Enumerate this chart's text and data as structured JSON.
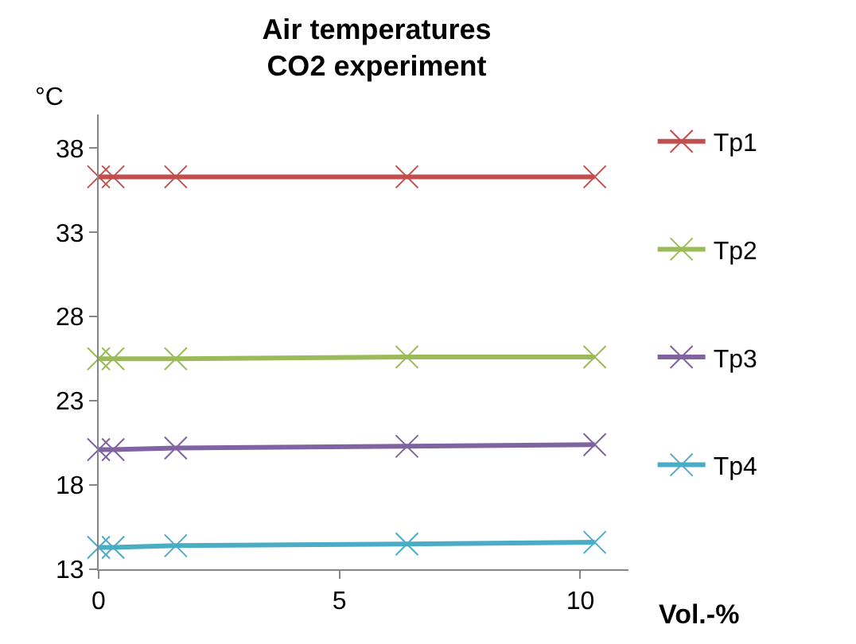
{
  "chart_data": {
    "type": "line",
    "title": "Air temperatures\nCO2 experiment",
    "xlabel": "Vol.-%",
    "ylabel": "°C",
    "x": [
      0,
      0.3,
      1.6,
      6.4,
      10.3
    ],
    "series": [
      {
        "name": "Tp1",
        "color": "#c0504d",
        "values": [
          36.3,
          36.3,
          36.3,
          36.3,
          36.3
        ]
      },
      {
        "name": "Tp2",
        "color": "#9bbb59",
        "values": [
          25.5,
          25.5,
          25.5,
          25.6,
          25.6
        ]
      },
      {
        "name": "Tp3",
        "color": "#8064a2",
        "values": [
          20.1,
          20.1,
          20.2,
          20.3,
          20.4
        ]
      },
      {
        "name": "Tp4",
        "color": "#4bacc6",
        "values": [
          14.3,
          14.3,
          14.4,
          14.5,
          14.6
        ]
      }
    ],
    "xlim": [
      0,
      11
    ],
    "xticks": [
      0,
      5,
      10
    ],
    "ylim": [
      13,
      40
    ],
    "yticks": [
      13,
      18,
      23,
      28,
      33,
      38
    ],
    "grid": false,
    "legend": "right",
    "marker": "cross",
    "line_style": "solid"
  }
}
